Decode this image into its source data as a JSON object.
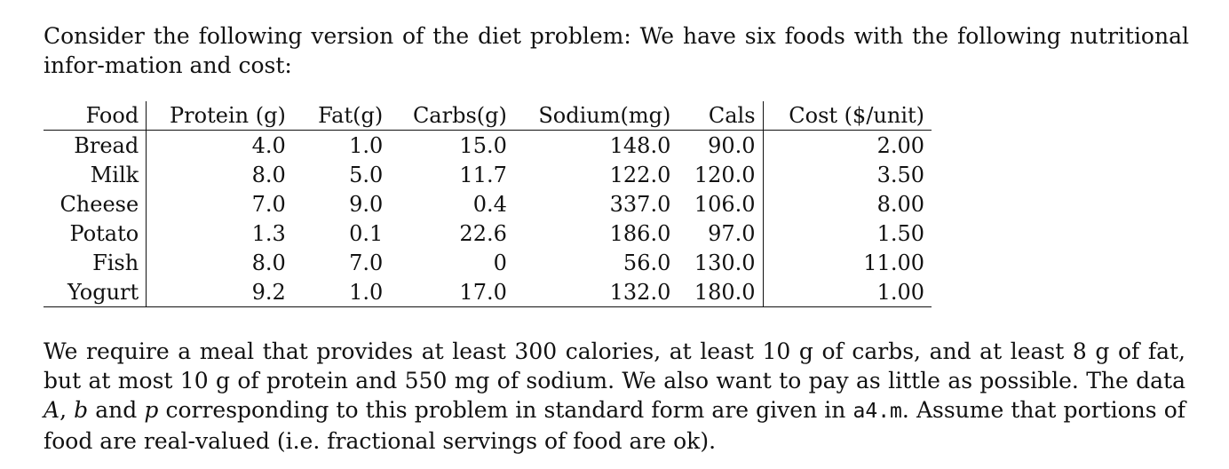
{
  "intro_text": "Consider the following version of the diet problem: We have six foods with the following nutritional infor-mation and cost:",
  "table": {
    "headers": [
      "Food",
      "Protein (g)",
      "Fat(g)",
      "Carbs(g)",
      "Sodium(mg)",
      "Cals",
      "Cost ($/unit)"
    ],
    "rows": [
      [
        "Bread",
        "4.0",
        "1.0",
        "15.0",
        "148.0",
        "90.0",
        "2.00"
      ],
      [
        "Milk",
        "8.0",
        "5.0",
        "11.7",
        "122.0",
        "120.0",
        "3.50"
      ],
      [
        "Cheese",
        "7.0",
        "9.0",
        "0.4",
        "337.0",
        "106.0",
        "8.00"
      ],
      [
        "Potato",
        "1.3",
        "0.1",
        "22.6",
        "186.0",
        "97.0",
        "1.50"
      ],
      [
        "Fish",
        "8.0",
        "7.0",
        "0",
        "56.0",
        "130.0",
        "11.00"
      ],
      [
        "Yogurt",
        "9.2",
        "1.0",
        "17.0",
        "132.0",
        "180.0",
        "1.00"
      ]
    ]
  },
  "outro": {
    "part1": "We require a meal that provides at least 300 calories, at least 10 g of carbs, and at least 8 g of fat, but at most 10 g of protein and 550 mg of sodium. We also want to pay as little as possible. The data ",
    "var_A": "A",
    "sep1": ", ",
    "var_b": "b",
    "sep2": " and ",
    "var_p": "p",
    "part2": " corresponding to this problem in standard form are given in ",
    "file": "a4.m",
    "part3": ". Assume that portions of food are real-valued (i.e. fractional servings of food are ok)."
  }
}
